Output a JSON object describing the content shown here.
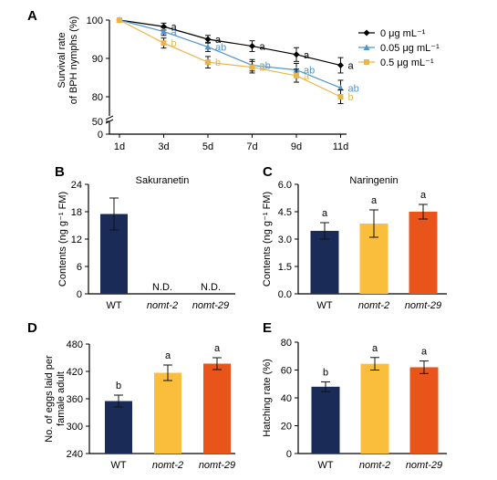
{
  "colors": {
    "axis": "#000000",
    "series_0": "#000000",
    "series_005": "#4f94cd",
    "series_05": "#e9b54a",
    "wt": "#1a2b57",
    "nomt2": "#fbbe3c",
    "nomt29": "#e8541a",
    "error": "#111111"
  },
  "chart_data": [
    {
      "panel": "A",
      "type": "line",
      "title": "",
      "xlabel": "",
      "ylabel_line1": "Survival rate",
      "ylabel_line2": "of BPH nymphs (%)",
      "categories": [
        "1d",
        "3d",
        "5d",
        "7d",
        "9d",
        "11d"
      ],
      "yticks": [
        "0",
        "50",
        "80",
        "90",
        "100"
      ],
      "ylim_upper": [
        75,
        100
      ],
      "ylim_lower": [
        0,
        50
      ],
      "axis_break": true,
      "legend_position": "top-right",
      "series": [
        {
          "name": "0 μg mL⁻¹",
          "marker": "diamond",
          "color_key": "series_0",
          "values": [
            100,
            98.3,
            95,
            93.2,
            91,
            88.2
          ],
          "errors": [
            0,
            0.9,
            1.0,
            1.4,
            1.8,
            2.0
          ],
          "letters": [
            "",
            "a",
            "a",
            "a",
            "a",
            "a"
          ]
        },
        {
          "name": "0.05 μg mL⁻¹",
          "marker": "triangle",
          "color_key": "series_005",
          "values": [
            100,
            97,
            93,
            88.2,
            87,
            82.3
          ],
          "errors": [
            0,
            1.0,
            1.2,
            1.5,
            1.7,
            2.0
          ],
          "letters": [
            "",
            "a",
            "ab",
            "ab",
            "ab",
            "ab"
          ]
        },
        {
          "name": "0.5 μg mL⁻¹",
          "marker": "square",
          "color_key": "series_05",
          "values": [
            100,
            94,
            89,
            87.7,
            85.5,
            80
          ],
          "errors": [
            0,
            1.3,
            1.5,
            1.5,
            1.7,
            1.8
          ],
          "letters": [
            "",
            "b",
            "b",
            "b",
            "a",
            "b"
          ]
        }
      ]
    },
    {
      "panel": "B",
      "type": "bar",
      "title": "Sakuranetin",
      "ylabel": "Contents (ng g⁻¹ FM)",
      "ylim": [
        0,
        24
      ],
      "yticks": [
        "0",
        "6",
        "12",
        "18",
        "24"
      ],
      "categories": [
        "WT",
        "nomt-2",
        "nomt-29"
      ],
      "values": [
        17.5,
        0,
        0
      ],
      "errors": [
        3.5,
        0,
        0
      ],
      "labels": [
        "",
        "N.D.",
        "N.D."
      ]
    },
    {
      "panel": "C",
      "type": "bar",
      "title": "Naringenin",
      "ylabel": "Contents (ng g⁻¹ FM)",
      "ylim": [
        0,
        6
      ],
      "yticks": [
        "0.0",
        "1.5",
        "3.0",
        "4.5",
        "6.0"
      ],
      "categories": [
        "WT",
        "nomt-2",
        "nomt-29"
      ],
      "values": [
        3.45,
        3.85,
        4.5
      ],
      "errors": [
        0.45,
        0.75,
        0.4
      ],
      "letters": [
        "a",
        "a",
        "a"
      ]
    },
    {
      "panel": "D",
      "type": "bar",
      "title": "",
      "ylabel_line1": "No. of eggs laid per",
      "ylabel_line2": "famale adult",
      "ylim": [
        240,
        480
      ],
      "yticks": [
        "240",
        "300",
        "360",
        "420",
        "480"
      ],
      "categories": [
        "WT",
        "nomt-2",
        "nomt-29"
      ],
      "values": [
        355,
        417,
        437
      ],
      "errors": [
        13,
        17,
        13
      ],
      "letters": [
        "b",
        "a",
        "a"
      ]
    },
    {
      "panel": "E",
      "type": "bar",
      "title": "",
      "ylabel": "Hatching rate (%)",
      "ylim": [
        0,
        80
      ],
      "yticks": [
        "0",
        "20",
        "40",
        "60",
        "80"
      ],
      "categories": [
        "WT",
        "nomt-2",
        "nomt-29"
      ],
      "values": [
        48,
        64.5,
        62
      ],
      "errors": [
        3.5,
        4.5,
        4.5
      ],
      "letters": [
        "b",
        "a",
        "a"
      ]
    }
  ],
  "panel_labels": [
    "A",
    "B",
    "C",
    "D",
    "E"
  ]
}
